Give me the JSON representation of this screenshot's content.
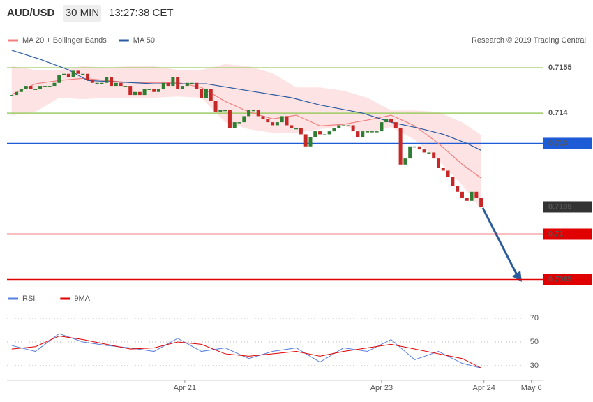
{
  "header": {
    "symbol": "AUD/USD",
    "timeframe": "30 MIN",
    "time": "13:27:38 CET"
  },
  "chart_data": [
    {
      "type": "candlestick",
      "credit": "Research © 2019 Trading Central",
      "xlim": [
        -1,
        112
      ],
      "ylim": [
        0.70805,
        0.71774
      ],
      "xticks": [
        {
          "value": 36.5,
          "label": "Apr 21"
        },
        {
          "value": 78,
          "label": "Apr 23"
        },
        {
          "value": 99.6,
          "label": "Apr 24"
        },
        {
          "value": 109.6,
          "label": "May 6"
        }
      ],
      "up_color": "#2e7d32",
      "down_color": "#c62828",
      "closes": [
        0.7146,
        0.7147,
        0.7148,
        0.7149,
        0.7148,
        0.7148,
        0.7149,
        0.7149,
        0.7149,
        0.715,
        0.71525,
        0.7153,
        0.7152,
        0.7154,
        0.7153,
        0.7153,
        0.7151,
        0.715,
        0.715,
        0.715,
        0.7152,
        0.7149,
        0.715,
        0.7149,
        0.7149,
        0.7146,
        0.7147,
        0.7146,
        0.7148,
        0.7148,
        0.7147,
        0.7148,
        0.715,
        0.7149,
        0.7152,
        0.7148,
        0.7149,
        0.715,
        0.715,
        0.7148,
        0.7145,
        0.7148,
        0.7144,
        0.71405,
        0.7141,
        0.7141,
        0.7135,
        0.7137,
        0.7137,
        0.7139,
        0.7141,
        0.7141,
        0.7139,
        0.7138,
        0.7137,
        0.7136,
        0.7137,
        0.7139,
        0.7136,
        0.7135,
        0.7135,
        0.7133,
        0.7129,
        0.7132,
        0.7134,
        0.7133,
        0.7133,
        0.7134,
        0.7135,
        0.7136,
        0.7136,
        0.7136,
        0.7134,
        0.7132,
        0.7134,
        0.7134,
        0.7134,
        0.7134,
        0.7137,
        0.7138,
        0.7137,
        0.7135,
        0.7123,
        0.7125,
        0.7129,
        0.7129,
        0.7128,
        0.7127,
        0.7127,
        0.7125,
        0.7122,
        0.7121,
        0.7119,
        0.7116,
        0.7114,
        0.7112,
        0.7111,
        0.7114,
        0.7112,
        0.7109
      ],
      "series": [
        {
          "name": "MA 20 + Bollinger Bands",
          "color": "#f08080",
          "band_color": "#fde3e3",
          "x": [
            0,
            5,
            10,
            15,
            20,
            25,
            30,
            35,
            40,
            45,
            50,
            55,
            60,
            65,
            70,
            75,
            80,
            85,
            90,
            95,
            99
          ],
          "values": [
            0.71462,
            0.71497,
            0.71508,
            0.71515,
            0.71508,
            0.71501,
            0.71501,
            0.71501,
            0.71485,
            0.71439,
            0.71404,
            0.71381,
            0.71393,
            0.71358,
            0.71363,
            0.71377,
            0.71393,
            0.71358,
            0.713,
            0.71231,
            0.71185
          ],
          "upper": [
            0.71555,
            0.71543,
            0.71543,
            0.71555,
            0.7155,
            0.71555,
            0.71555,
            0.71543,
            0.71543,
            0.71562,
            0.71555,
            0.71532,
            0.71485,
            0.71485,
            0.71474,
            0.71451,
            0.71409,
            0.71409,
            0.71404,
            0.7137,
            0.71328
          ],
          "lower": [
            0.71393,
            0.71404,
            0.71451,
            0.71446,
            0.71451,
            0.71451,
            0.71451,
            0.71455,
            0.71451,
            0.7137,
            0.71347,
            0.71335,
            0.71335,
            0.71347,
            0.71358,
            0.71335,
            0.71354,
            0.71312,
            0.71243,
            0.71162,
            0.71081
          ]
        },
        {
          "name": "MA 50",
          "color": "#2c5aa0",
          "x": [
            0,
            6,
            12,
            16,
            30,
            41,
            50,
            59,
            65,
            74,
            80,
            86,
            91,
            96,
            99
          ],
          "values": [
            0.71608,
            0.71578,
            0.71543,
            0.71508,
            0.71497,
            0.71497,
            0.71474,
            0.71451,
            0.71427,
            0.714,
            0.7137,
            0.7135,
            0.7133,
            0.713,
            0.71277
          ]
        }
      ],
      "levels": [
        {
          "value": 0.7155,
          "color": "#9ccc65"
        },
        {
          "value": 0.714,
          "color": "#9ccc65"
        },
        {
          "value": 0.713,
          "color": "#1e5bd6",
          "boxed": true
        },
        {
          "value": 0.7109,
          "color": "#333333",
          "boxed": true,
          "dotted": true
        },
        {
          "value": 0.71,
          "color": "#e00000",
          "boxed": true
        },
        {
          "value": 0.7085,
          "color": "#e00000",
          "boxed": true
        }
      ]
    },
    {
      "type": "line",
      "ylim": [
        17.6,
        79.4
      ],
      "yticks": [
        70,
        50,
        30
      ],
      "grid": true,
      "x": [
        0,
        5,
        10,
        15,
        20,
        25,
        30,
        35,
        40,
        45,
        50,
        55,
        60,
        65,
        70,
        75,
        80,
        85,
        90,
        95,
        99
      ],
      "series": [
        {
          "name": "RSI",
          "color": "#5b7fde",
          "values": [
            47,
            42,
            57,
            50,
            47,
            45,
            42,
            53,
            42,
            45,
            36,
            42,
            45,
            33,
            45,
            42,
            52,
            35,
            42,
            32,
            28
          ]
        },
        {
          "name": "9MA",
          "color": "#e00000",
          "values": [
            44,
            46,
            55,
            52,
            48,
            44,
            45,
            50,
            48,
            40,
            38,
            40,
            42,
            38,
            42,
            45,
            48,
            44,
            40,
            36,
            28
          ]
        }
      ]
    }
  ]
}
